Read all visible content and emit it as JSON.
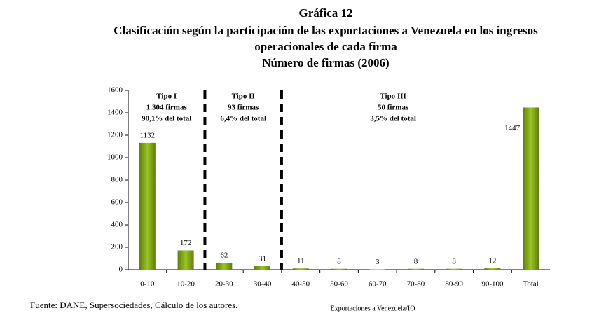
{
  "chart_data": {
    "type": "bar",
    "title": "Gráfica 12",
    "subtitle": [
      "Clasificación según la participación de las exportaciones a Venezuela en  los ingresos",
      "operacionales de cada firma",
      "Número de firmas (2006)"
    ],
    "x_label": "Exportaciones a Venezuela/IO",
    "source": "Fuente: DANE, Supersociedades, Cálculo de los autores.",
    "categories": [
      "0-10",
      "10-20",
      "20-30",
      "30-40",
      "40-50",
      "50-60",
      "60-70",
      "70-80",
      "80-90",
      "90-100",
      "Total"
    ],
    "values": [
      1132,
      172,
      62,
      31,
      11,
      8,
      3,
      8,
      8,
      12,
      1447
    ],
    "color": "#7fa31a",
    "ylim": [
      0,
      1600
    ],
    "yticks": [
      0,
      200,
      400,
      600,
      800,
      1000,
      1200,
      1400,
      1600
    ],
    "grid": false,
    "annotations": [
      [
        "Tipo I",
        "1.304 firmas",
        "90,1% del total"
      ],
      [
        "Tipo II",
        "93 firmas",
        "6,4% del total"
      ],
      [
        "Tipo III",
        "50 firmas",
        "3,5% del total"
      ]
    ]
  }
}
